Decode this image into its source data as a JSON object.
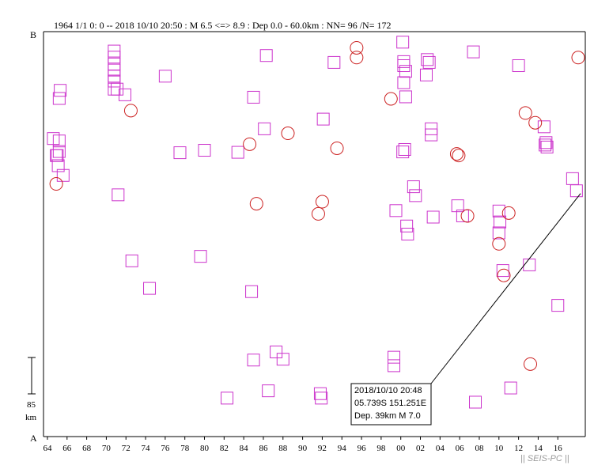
{
  "header": {
    "title": "1964 1/1 0: 0 -- 2018 10/10 20:50  : M 6.5 <=> 8.9   :  Dep 0.0 - 60.0km :  NN= 96 /N= 172"
  },
  "axis_labels": {
    "top": "B",
    "bottom": "A"
  },
  "scale_bar": {
    "value": "85",
    "unit": "km"
  },
  "callout": {
    "line1": "2018/10/10 20:48",
    "line2": "05.739S   151.251E",
    "line3": "Dep. 39km     M 7.0"
  },
  "credit": "|| SEIS-PC ||",
  "colors": {
    "square": "#cc33cc",
    "circle": "#cc2222",
    "axis": "#000000"
  },
  "chart_data": {
    "type": "scatter",
    "xlabel": "",
    "ylabel": "",
    "xlim": [
      1963.6,
      2018.8
    ],
    "ylim": [
      0,
      1
    ],
    "x_ticks": [
      "64",
      "66",
      "68",
      "70",
      "72",
      "74",
      "76",
      "78",
      "80",
      "82",
      "84",
      "86",
      "88",
      "90",
      "92",
      "94",
      "96",
      "98",
      "00",
      "02",
      "04",
      "06",
      "08",
      "10",
      "12",
      "14",
      "16"
    ],
    "x_tick_years": [
      1964,
      1966,
      1968,
      1970,
      1972,
      1974,
      1976,
      1978,
      1980,
      1982,
      1984,
      1986,
      1988,
      1990,
      1992,
      1994,
      1996,
      1998,
      2000,
      2002,
      2004,
      2006,
      2008,
      2010,
      2012,
      2014,
      2016
    ],
    "y_end_labels": [
      "B",
      "A"
    ],
    "series": [
      {
        "marker": "square",
        "points": [
          [
            1964.6,
            0.264
          ],
          [
            1964.9,
            0.306
          ],
          [
            1965.0,
            0.306
          ],
          [
            1965.1,
            0.331
          ],
          [
            1965.2,
            0.27
          ],
          [
            1965.3,
            0.145
          ],
          [
            1965.6,
            0.355
          ],
          [
            1965.2,
            0.165
          ],
          [
            1965.2,
            0.296
          ],
          [
            1970.8,
            0.048
          ],
          [
            1970.8,
            0.063
          ],
          [
            1970.8,
            0.08
          ],
          [
            1970.8,
            0.095
          ],
          [
            1970.8,
            0.11
          ],
          [
            1970.8,
            0.122
          ],
          [
            1970.8,
            0.142
          ],
          [
            1971.1,
            0.142
          ],
          [
            1971.9,
            0.156
          ],
          [
            1971.2,
            0.403
          ],
          [
            1972.6,
            0.566
          ],
          [
            1974.4,
            0.634
          ],
          [
            1976.0,
            0.11
          ],
          [
            1977.5,
            0.299
          ],
          [
            1979.6,
            0.555
          ],
          [
            1980.0,
            0.293
          ],
          [
            1982.3,
            0.905
          ],
          [
            1983.4,
            0.298
          ],
          [
            1984.8,
            0.642
          ],
          [
            1985.0,
            0.811
          ],
          [
            1985.0,
            0.162
          ],
          [
            1986.1,
            0.24
          ],
          [
            1986.3,
            0.059
          ],
          [
            1986.5,
            0.887
          ],
          [
            1987.3,
            0.791
          ],
          [
            1988.0,
            0.809
          ],
          [
            1992.1,
            0.216
          ],
          [
            1993.2,
            0.076
          ],
          [
            1991.8,
            0.894
          ],
          [
            1991.9,
            0.905
          ],
          [
            1999.3,
            0.804
          ],
          [
            1999.3,
            0.825
          ],
          [
            1999.5,
            0.442
          ],
          [
            2000.2,
            0.026
          ],
          [
            2000.3,
            0.074
          ],
          [
            2000.3,
            0.084
          ],
          [
            2000.3,
            0.126
          ],
          [
            2000.5,
            0.161
          ],
          [
            2000.5,
            0.098
          ],
          [
            2000.2,
            0.297
          ],
          [
            2000.4,
            0.291
          ],
          [
            2000.6,
            0.48
          ],
          [
            2000.7,
            0.5
          ],
          [
            2001.3,
            0.383
          ],
          [
            2001.5,
            0.405
          ],
          [
            2002.6,
            0.107
          ],
          [
            2002.7,
            0.069
          ],
          [
            2002.9,
            0.076
          ],
          [
            2003.1,
            0.255
          ],
          [
            2003.1,
            0.24
          ],
          [
            2003.3,
            0.458
          ],
          [
            2005.8,
            0.43
          ],
          [
            2006.3,
            0.455
          ],
          [
            2007.4,
            0.05
          ],
          [
            2007.6,
            0.915
          ],
          [
            2010.0,
            0.443
          ],
          [
            2010.0,
            0.497
          ],
          [
            2010.1,
            0.47
          ],
          [
            2010.4,
            0.59
          ],
          [
            2011.2,
            0.88
          ],
          [
            2012.0,
            0.084
          ],
          [
            2013.1,
            0.576
          ],
          [
            2014.6,
            0.235
          ],
          [
            2014.7,
            0.28
          ],
          [
            2014.8,
            0.274
          ],
          [
            2014.9,
            0.285
          ],
          [
            2016.0,
            0.676
          ],
          [
            2017.5,
            0.363
          ],
          [
            2017.9,
            0.393
          ]
        ]
      },
      {
        "marker": "circle",
        "points": [
          [
            1964.9,
            0.376
          ],
          [
            1972.5,
            0.195
          ],
          [
            1984.6,
            0.278
          ],
          [
            1985.3,
            0.425
          ],
          [
            1988.5,
            0.251
          ],
          [
            1991.6,
            0.45
          ],
          [
            1992.0,
            0.42
          ],
          [
            1993.5,
            0.288
          ],
          [
            1995.5,
            0.04
          ],
          [
            1995.5,
            0.064
          ],
          [
            1999.0,
            0.166
          ],
          [
            2005.7,
            0.302
          ],
          [
            2005.9,
            0.306
          ],
          [
            2006.8,
            0.455
          ],
          [
            2010.0,
            0.524
          ],
          [
            2010.5,
            0.602
          ],
          [
            2011.0,
            0.448
          ],
          [
            2012.7,
            0.201
          ],
          [
            2013.7,
            0.225
          ],
          [
            2013.2,
            0.821
          ],
          [
            2018.5,
            0.064
          ]
        ]
      }
    ],
    "highlight": {
      "x": 2018.8,
      "y": 0.39
    }
  }
}
